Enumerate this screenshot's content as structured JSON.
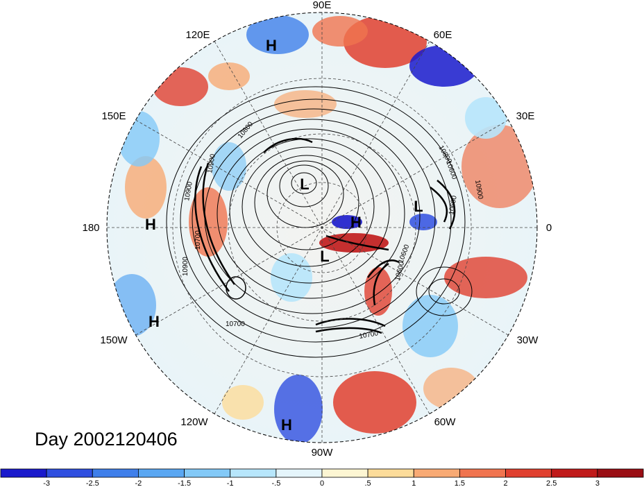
{
  "date_label": "Day 2002120406",
  "longitude_labels": [
    "90E",
    "60E",
    "30E",
    "0",
    "30W",
    "60W",
    "90W",
    "120W",
    "150W",
    "180",
    "150E",
    "120E"
  ],
  "pressure_centers": [
    {
      "type": "H",
      "name": "high-pressure-label"
    },
    {
      "type": "H",
      "name": "high-pressure-label"
    },
    {
      "type": "H",
      "name": "high-pressure-label"
    },
    {
      "type": "H",
      "name": "high-pressure-label"
    },
    {
      "type": "H",
      "name": "high-pressure-label"
    },
    {
      "type": "L",
      "name": "low-pressure-label"
    },
    {
      "type": "L",
      "name": "low-pressure-label"
    },
    {
      "type": "L",
      "name": "low-pressure-label"
    }
  ],
  "contour_labels": [
    "10800",
    "10900",
    "10700",
    "10600",
    "10600",
    "10900",
    "10900",
    "10700",
    "10800",
    "10700",
    "10600",
    "10600",
    "10900"
  ],
  "colorbar": {
    "ticks": [
      "-3",
      "-2.5",
      "-2",
      "-1.5",
      "-1",
      "-.5",
      "0",
      ".5",
      "1",
      "1.5",
      "2",
      "2.5",
      "3"
    ],
    "colors": [
      "#1a1acc",
      "#2f4fe0",
      "#3f7fea",
      "#5aa7f2",
      "#83c9f7",
      "#b7e6fb",
      "#e5f5fb",
      "#fdf6d3",
      "#fcdc9a",
      "#f8aa74",
      "#f0744f",
      "#e0402f",
      "#c01a1a",
      "#9a0e14"
    ]
  }
}
